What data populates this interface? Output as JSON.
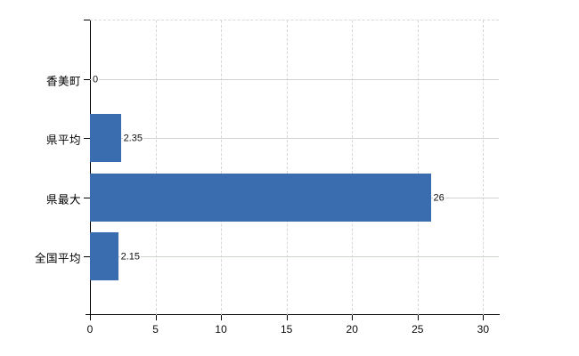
{
  "page": {
    "background_color": "#ffffff",
    "title": ""
  },
  "chart_data": {
    "type": "bar",
    "orientation": "horizontal",
    "title": "",
    "xlabel": "",
    "ylabel": "",
    "legend": "none",
    "grid": "on",
    "categories": [
      "香美町",
      "県平均",
      "県最大",
      "全国平均"
    ],
    "values": [
      0,
      2.35,
      26,
      2.15
    ],
    "value_labels": [
      "0",
      "2.35",
      "26",
      "2.15"
    ],
    "x_tick_labels": [
      "0",
      "5",
      "10",
      "15",
      "20",
      "25",
      "30"
    ],
    "x_tick_values": [
      0,
      5,
      10,
      15,
      20,
      25,
      30
    ],
    "xlim": [
      0,
      31.2
    ],
    "bar_color": "#3a6cb0",
    "axis_color": "#000000",
    "h_grid_color": "#ccd4cc",
    "v_grid_color": "#d7d7d7",
    "top_border_color": "#d9d9d9"
  }
}
